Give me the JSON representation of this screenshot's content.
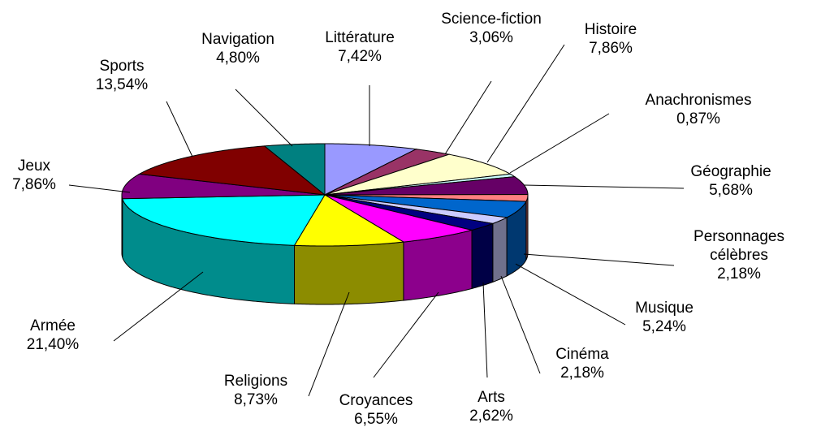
{
  "chart_data": {
    "type": "pie3d",
    "categories": [
      "Littérature",
      "Science-fiction",
      "Histoire",
      "Anachronismes",
      "Géographie",
      "Personnages célèbres",
      "Musique",
      "Cinéma",
      "Arts",
      "Croyances",
      "Religions",
      "Armée",
      "Jeux",
      "Sports",
      "Navigation"
    ],
    "values": [
      7.42,
      3.06,
      7.86,
      0.87,
      5.68,
      2.18,
      5.24,
      2.18,
      2.62,
      6.55,
      8.73,
      21.4,
      7.86,
      13.54,
      4.8
    ],
    "value_labels": [
      "7,42%",
      "3,06%",
      "7,86%",
      "0,87%",
      "5,68%",
      "2,18%",
      "5,24%",
      "2,18%",
      "2,62%",
      "6,55%",
      "8,73%",
      "21,40%",
      "7,86%",
      "13,54%",
      "4,80%"
    ],
    "colors": [
      "#9999FF",
      "#993366",
      "#FFFFCC",
      "#CCFFFF",
      "#660066",
      "#FF8080",
      "#0066CC",
      "#CCCCFF",
      "#000080",
      "#FF00FF",
      "#FFFF00",
      "#00FFFF",
      "#800080",
      "#800000",
      "#008080"
    ]
  }
}
